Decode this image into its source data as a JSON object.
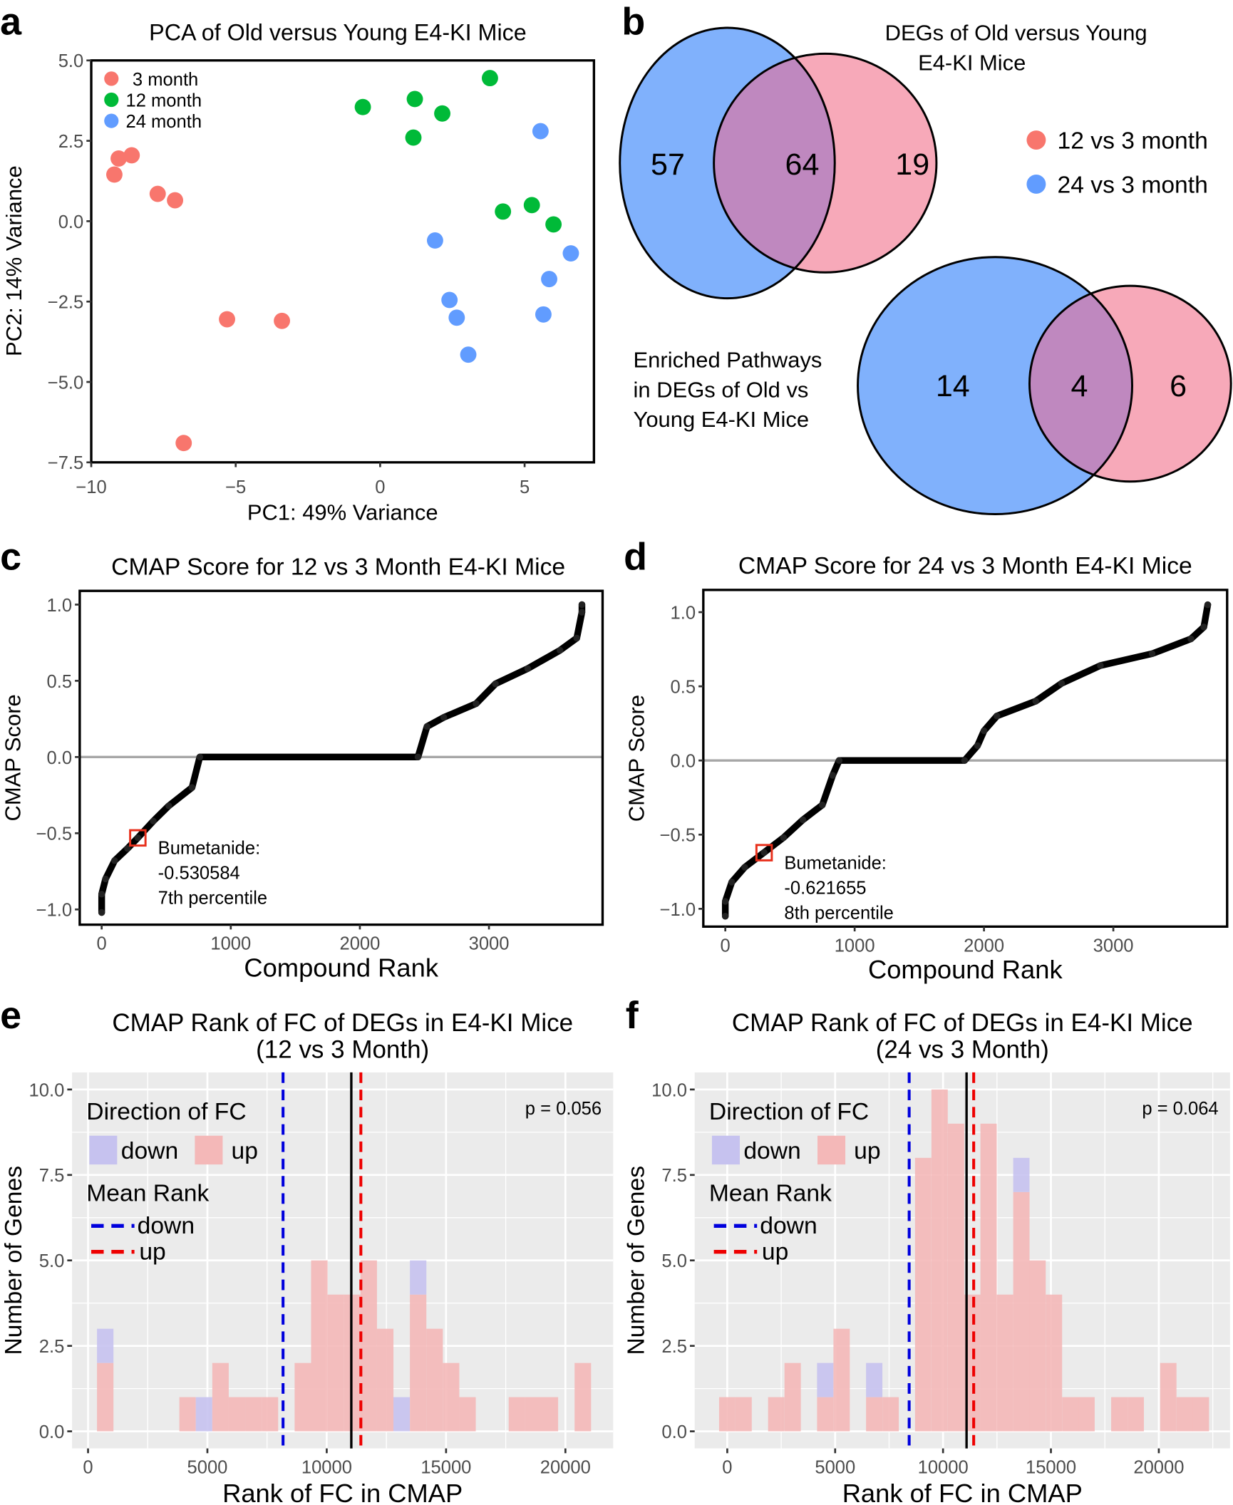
{
  "panels": {
    "a": "a",
    "b": "b",
    "c": "c",
    "d": "d",
    "e": "e",
    "f": "f"
  },
  "chart_data": [
    {
      "panel": "a",
      "type": "scatter",
      "title": "PCA of Old versus Young E4-KI Mice",
      "xlabel": "PC1: 49% Variance",
      "ylabel": "PC2: 14% Variance",
      "xlim": [
        -10,
        7.4
      ],
      "ylim": [
        -7.5,
        5.0
      ],
      "xticks": [
        -10,
        -5,
        0,
        5
      ],
      "xtick_labels": [
        "−10",
        "−5",
        "0",
        "5"
      ],
      "yticks": [
        5.0,
        2.5,
        0.0,
        -2.5,
        -5.0,
        -7.5
      ],
      "ytick_labels": [
        "5.0",
        "2.5",
        "0.0",
        "−2.5",
        "−5.0",
        "−7.5"
      ],
      "legend_placement": "top-left",
      "series": [
        {
          "name": "3 month",
          "color": "#F8766D",
          "points": [
            [
              -9.2,
              1.45
            ],
            [
              -9.05,
              1.95
            ],
            [
              -8.6,
              2.05
            ],
            [
              -7.7,
              0.85
            ],
            [
              -7.1,
              0.65
            ],
            [
              -5.3,
              -3.05
            ],
            [
              -3.4,
              -3.1
            ],
            [
              -6.8,
              -6.9
            ]
          ]
        },
        {
          "name": "12 month",
          "color": "#00BA38",
          "points": [
            [
              -0.6,
              3.55
            ],
            [
              1.2,
              3.8
            ],
            [
              2.15,
              3.35
            ],
            [
              1.15,
              2.6
            ],
            [
              3.8,
              4.45
            ],
            [
              4.25,
              0.3
            ],
            [
              5.25,
              0.5
            ],
            [
              6.0,
              -0.1
            ]
          ]
        },
        {
          "name": "24 month",
          "color": "#619CFF",
          "points": [
            [
              5.55,
              2.8
            ],
            [
              1.9,
              -0.6
            ],
            [
              6.6,
              -1.0
            ],
            [
              5.85,
              -1.8
            ],
            [
              2.4,
              -2.45
            ],
            [
              2.65,
              -3.0
            ],
            [
              5.65,
              -2.9
            ],
            [
              3.05,
              -4.15
            ]
          ]
        }
      ]
    },
    {
      "panel": "b",
      "type": "venn",
      "legend": [
        {
          "name": "12 vs 3 month",
          "color": "#F8766D"
        },
        {
          "name": "24 vs 3 month",
          "color": "#619CFF"
        }
      ],
      "diagrams": [
        {
          "title_lines": [
            "DEGs of Old versus Young",
            "E4-KI Mice"
          ],
          "only_24": "57",
          "both": "64",
          "only_12": "19"
        },
        {
          "title_lines": [
            "Enriched Pathways",
            "in DEGs of Old vs",
            "Young E4-KI Mice"
          ],
          "only_24": "14",
          "both": "4",
          "only_12": "6"
        }
      ],
      "colors": {
        "blue": "#80b1fc",
        "pink": "#f7a9b9",
        "overlap": "#bf88bf"
      }
    },
    {
      "panel": "c",
      "type": "scatter",
      "title": "CMAP Score for 12 vs 3 Month E4-KI Mice",
      "xlabel": "Compound Rank",
      "ylabel": "CMAP Score",
      "xlim": [
        -170,
        3880
      ],
      "ylim": [
        -1.1,
        1.09
      ],
      "xticks": [
        0,
        1000,
        2000,
        3000
      ],
      "xtick_labels": [
        "0",
        "1000",
        "2000",
        "3000"
      ],
      "yticks": [
        1.0,
        0.5,
        0.0,
        -0.5,
        -1.0
      ],
      "ytick_labels": [
        "1.0",
        "0.5",
        "0.0",
        "−0.5",
        "−1.0"
      ],
      "curve": [
        [
          0,
          -1.02
        ],
        [
          0,
          -0.9
        ],
        [
          30,
          -0.8
        ],
        [
          100,
          -0.68
        ],
        [
          200,
          -0.6
        ],
        [
          280,
          -0.53
        ],
        [
          400,
          -0.42
        ],
        [
          520,
          -0.32
        ],
        [
          700,
          -0.2
        ],
        [
          760,
          0
        ],
        [
          2450,
          0
        ],
        [
          2520,
          0.2
        ],
        [
          2650,
          0.26
        ],
        [
          2900,
          0.35
        ],
        [
          3050,
          0.48
        ],
        [
          3300,
          0.58
        ],
        [
          3550,
          0.7
        ],
        [
          3680,
          0.78
        ],
        [
          3720,
          0.95
        ],
        [
          3720,
          1.0
        ]
      ],
      "highlight": {
        "rank": 280,
        "score": -0.530584,
        "lines": [
          "Bumetanide:",
          "-0.530584",
          "7th percentile"
        ]
      }
    },
    {
      "panel": "d",
      "type": "scatter",
      "title": "CMAP Score for 24 vs 3 Month E4-KI Mice",
      "xlabel": "Compound Rank",
      "ylabel": "CMAP Score",
      "xlim": [
        -170,
        3880
      ],
      "ylim": [
        -1.12,
        1.15
      ],
      "xticks": [
        0,
        1000,
        2000,
        3000
      ],
      "xtick_labels": [
        "0",
        "1000",
        "2000",
        "3000"
      ],
      "yticks": [
        1.0,
        0.5,
        0.0,
        -0.5,
        -1.0
      ],
      "ytick_labels": [
        "1.0",
        "0.5",
        "0.0",
        "−0.5",
        "−1.0"
      ],
      "curve": [
        [
          0,
          -1.05
        ],
        [
          0,
          -0.95
        ],
        [
          50,
          -0.82
        ],
        [
          150,
          -0.72
        ],
        [
          300,
          -0.62
        ],
        [
          450,
          -0.52
        ],
        [
          600,
          -0.4
        ],
        [
          750,
          -0.3
        ],
        [
          830,
          -0.1
        ],
        [
          880,
          0
        ],
        [
          1850,
          0
        ],
        [
          1950,
          0.1
        ],
        [
          2000,
          0.2
        ],
        [
          2100,
          0.3
        ],
        [
          2400,
          0.4
        ],
        [
          2600,
          0.52
        ],
        [
          2900,
          0.64
        ],
        [
          3300,
          0.72
        ],
        [
          3600,
          0.82
        ],
        [
          3700,
          0.9
        ],
        [
          3730,
          1.05
        ]
      ],
      "highlight": {
        "rank": 300,
        "score": -0.621655,
        "lines": [
          "Bumetanide:",
          "-0.621655",
          "8th percentile"
        ]
      }
    },
    {
      "panel": "e",
      "type": "bar",
      "title_lines": [
        "CMAP Rank of FC of DEGs in E4-KI Mice",
        "(12 vs 3 Month)"
      ],
      "xlabel": "Rank of FC in CMAP",
      "ylabel": "Number of Genes",
      "xlim": [
        -670,
        22000
      ],
      "ylim": [
        -0.5,
        10.5
      ],
      "xticks": [
        0,
        5000,
        10000,
        15000,
        20000
      ],
      "xtick_labels": [
        "0",
        "5000",
        "10000",
        "15000",
        "20000"
      ],
      "yticks": [
        0,
        2.5,
        5,
        7.5,
        10
      ],
      "ytick_labels": [
        "0.0",
        "2.5",
        "5.0",
        "7.5",
        "10.0"
      ],
      "bin_width": 690,
      "bins": [
        [
          720,
          2,
          1
        ],
        [
          4170,
          1,
          0
        ],
        [
          4860,
          0,
          1
        ],
        [
          5550,
          2,
          0
        ],
        [
          6240,
          1,
          0
        ],
        [
          6930,
          1,
          0
        ],
        [
          7620,
          1,
          0
        ],
        [
          9000,
          2,
          0
        ],
        [
          9690,
          5,
          0
        ],
        [
          10380,
          4,
          0
        ],
        [
          11070,
          4,
          0
        ],
        [
          11760,
          5,
          0
        ],
        [
          12450,
          3,
          0
        ],
        [
          13140,
          0,
          1
        ],
        [
          13830,
          4,
          1
        ],
        [
          14520,
          3,
          0
        ],
        [
          15210,
          2,
          0
        ],
        [
          15900,
          1,
          0
        ],
        [
          17970,
          1,
          0
        ],
        [
          18660,
          1,
          0
        ],
        [
          19350,
          1,
          0
        ],
        [
          20730,
          2,
          0
        ]
      ],
      "bins_columns": [
        "center",
        "up",
        "down"
      ],
      "mean_rank": {
        "down": 8170,
        "up": 11430,
        "overall": 11030
      },
      "p_text": "p = 0.056",
      "legend": {
        "fill_title": "Direction of FC",
        "fill_items": [
          "down",
          "up"
        ],
        "line_title": "Mean Rank",
        "line_items": [
          "down",
          "up"
        ]
      },
      "colors": {
        "up": "#f4b8b8",
        "down": "#c6c2ef",
        "mean_down": "#0000dd",
        "mean_up": "#ee0000",
        "overall": "#000000"
      }
    },
    {
      "panel": "f",
      "type": "bar",
      "title_lines": [
        "CMAP Rank of FC of DEGs in E4-KI Mice",
        "(24 vs 3 Month)"
      ],
      "xlabel": "Rank of FC in CMAP",
      "ylabel": "Number of Genes",
      "xlim": [
        -1510,
        23300
      ],
      "ylim": [
        -0.5,
        10.5
      ],
      "xticks": [
        0,
        5000,
        10000,
        15000,
        20000
      ],
      "xtick_labels": [
        "0",
        "5000",
        "10000",
        "15000",
        "20000"
      ],
      "yticks": [
        0,
        2.5,
        5,
        7.5,
        10
      ],
      "ytick_labels": [
        "0.0",
        "2.5",
        "5.0",
        "7.5",
        "10.0"
      ],
      "bin_width": 757,
      "bins": [
        [
          0,
          1,
          0
        ],
        [
          757,
          1,
          0
        ],
        [
          2270,
          1,
          0
        ],
        [
          3030,
          2,
          0
        ],
        [
          4540,
          1,
          1
        ],
        [
          5300,
          3,
          0
        ],
        [
          6810,
          1,
          1
        ],
        [
          7570,
          1,
          0
        ],
        [
          9080,
          8,
          0
        ],
        [
          9840,
          10,
          0
        ],
        [
          10600,
          9,
          0
        ],
        [
          11360,
          4,
          0
        ],
        [
          12110,
          9,
          0
        ],
        [
          12870,
          4,
          0
        ],
        [
          13630,
          7,
          1
        ],
        [
          14380,
          5,
          0
        ],
        [
          15140,
          4,
          0
        ],
        [
          15900,
          1,
          0
        ],
        [
          16650,
          1,
          0
        ],
        [
          18170,
          1,
          0
        ],
        [
          18930,
          1,
          0
        ],
        [
          20440,
          2,
          0
        ],
        [
          21200,
          1,
          0
        ],
        [
          21950,
          1,
          0
        ]
      ],
      "bins_columns": [
        "center",
        "up",
        "down"
      ],
      "mean_rank": {
        "down": 8430,
        "up": 11420,
        "overall": 11090
      },
      "p_text": "p = 0.064",
      "legend": {
        "fill_title": "Direction of FC",
        "fill_items": [
          "down",
          "up"
        ],
        "line_title": "Mean Rank",
        "line_items": [
          "down",
          "up"
        ]
      },
      "colors": {
        "up": "#f4b8b8",
        "down": "#c6c2ef",
        "mean_down": "#0000dd",
        "mean_up": "#ee0000",
        "overall": "#000000"
      }
    }
  ]
}
